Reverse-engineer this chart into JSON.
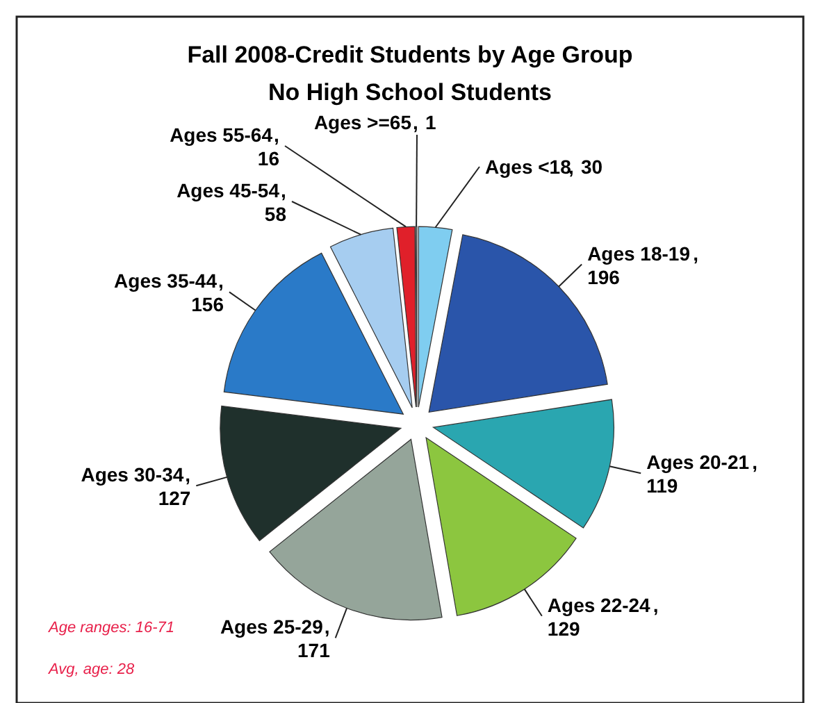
{
  "chart_data": {
    "type": "pie",
    "title": "Fall 2008-Credit Students by Age Group",
    "subtitle": "No High School Students",
    "categories": [
      "Ages <18",
      "Ages 18-19",
      "Ages 20-21",
      "Ages 22-24",
      "Ages 25-29",
      "Ages 30-34",
      "Ages 35-44",
      "Ages 45-54",
      "Ages 55-64",
      "Ages >=65"
    ],
    "values": [
      30,
      196,
      119,
      129,
      171,
      127,
      156,
      58,
      16,
      1
    ],
    "colors": [
      "#7fcdf0",
      "#2a55aa",
      "#2aa6b0",
      "#8cc63f",
      "#95a59a",
      "#1f302c",
      "#2a7ac8",
      "#a6cdf0",
      "#e0202a",
      "#f0f0f0"
    ],
    "value_labels": [
      ", 30",
      ", 196",
      ", 119",
      ", 129",
      ", 171",
      ", 127",
      ", 156",
      ", 58",
      ", 16",
      ", 1"
    ],
    "annotations": [
      "Age ranges: 16-71",
      "Avg, age:  28"
    ]
  }
}
